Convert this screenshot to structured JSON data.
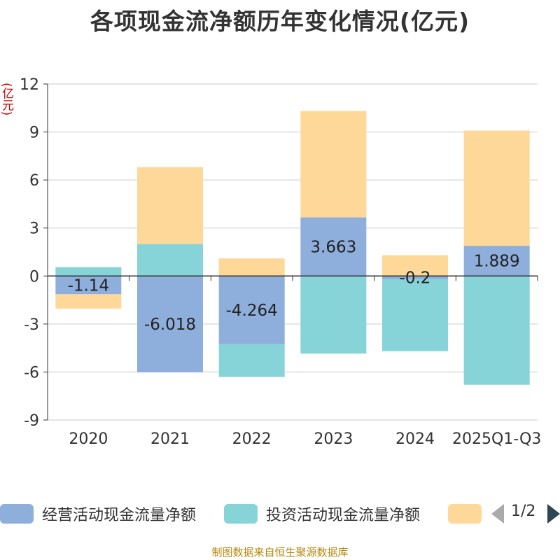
{
  "chart_data": {
    "type": "bar",
    "stacked": true,
    "title": "各项现金流净额历年变化情况(亿元)",
    "ylabel": "(亿元)",
    "xlabel": "",
    "categories": [
      "2020",
      "2021",
      "2022",
      "2023",
      "2024",
      "2025Q1-Q3"
    ],
    "ylim": [
      -9,
      12
    ],
    "yticks": [
      -9,
      -6,
      -3,
      0,
      3,
      6,
      9,
      12
    ],
    "ytick_labels": [
      "-9",
      "-6",
      "-3",
      "0",
      "3",
      "6",
      "9",
      "12"
    ],
    "grid": true,
    "series": [
      {
        "name": "经营活动现金流量净额",
        "color": "#8eaedb",
        "values": [
          -1.14,
          -6.018,
          -4.264,
          3.663,
          -0.2,
          1.889
        ],
        "labels": [
          "-1.14",
          "-6.018",
          "-4.264",
          "3.663",
          "-0.2",
          "1.889"
        ]
      },
      {
        "name": "投资活动现金流量净额",
        "color": "#87d4d8",
        "values": [
          0.55,
          2.0,
          -2.05,
          -4.85,
          -4.5,
          -6.8
        ]
      },
      {
        "name": "",
        "color": "#fed898",
        "values": [
          -0.9,
          4.8,
          1.1,
          6.65,
          1.3,
          7.2
        ]
      }
    ]
  },
  "legend": {
    "items": [
      "经营活动现金流量净额",
      "投资活动现金流量净额",
      ""
    ],
    "page_indicator": "1/2"
  },
  "source_note": "制图数据来自恒生聚源数据库"
}
